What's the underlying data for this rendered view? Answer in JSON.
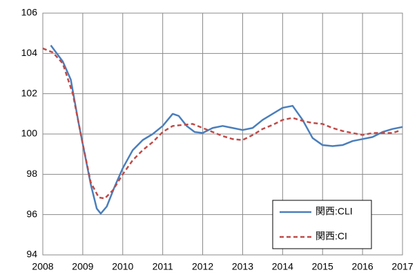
{
  "chart_data": {
    "type": "line",
    "xlim": [
      2008,
      2017
    ],
    "xticks": [
      2008,
      2009,
      2010,
      2011,
      2012,
      2013,
      2014,
      2015,
      2016,
      2017
    ],
    "ylim": [
      94,
      106
    ],
    "yticks": [
      94,
      96,
      98,
      100,
      102,
      104,
      106
    ],
    "grid": true,
    "legend": "lower-right",
    "series": [
      {
        "name": "関西:CLI",
        "color": "#4a7ebb",
        "dash": false,
        "x": [
          2008.2,
          2008.5,
          2008.7,
          2008.9,
          2009.0,
          2009.2,
          2009.35,
          2009.45,
          2009.6,
          2009.8,
          2010.0,
          2010.25,
          2010.5,
          2010.75,
          2011.0,
          2011.25,
          2011.4,
          2011.6,
          2011.8,
          2012.0,
          2012.25,
          2012.5,
          2012.75,
          2013.0,
          2013.25,
          2013.5,
          2013.75,
          2014.0,
          2014.25,
          2014.5,
          2014.75,
          2015.0,
          2015.25,
          2015.5,
          2015.75,
          2016.0,
          2016.25,
          2016.5,
          2016.75,
          2017.0
        ],
        "values": [
          104.4,
          103.6,
          102.7,
          100.5,
          99.5,
          97.5,
          96.3,
          96.05,
          96.4,
          97.4,
          98.3,
          99.2,
          99.7,
          100.0,
          100.4,
          101.0,
          100.9,
          100.4,
          100.1,
          100.05,
          100.3,
          100.4,
          100.3,
          100.2,
          100.3,
          100.7,
          101.0,
          101.3,
          101.4,
          100.7,
          99.8,
          99.45,
          99.4,
          99.45,
          99.65,
          99.75,
          99.85,
          100.1,
          100.25,
          100.35
        ]
      },
      {
        "name": "関西:CI",
        "color": "#be4b48",
        "dash": true,
        "x": [
          2008.0,
          2008.25,
          2008.5,
          2008.75,
          2009.0,
          2009.2,
          2009.4,
          2009.55,
          2009.75,
          2010.0,
          2010.25,
          2010.5,
          2010.75,
          2011.0,
          2011.25,
          2011.5,
          2011.75,
          2012.0,
          2012.25,
          2012.5,
          2012.75,
          2013.0,
          2013.25,
          2013.5,
          2013.75,
          2014.0,
          2014.25,
          2014.5,
          2014.75,
          2015.0,
          2015.25,
          2015.5,
          2015.75,
          2016.0,
          2016.25,
          2016.5,
          2016.75,
          2016.9
        ],
        "values": [
          104.25,
          104.05,
          103.5,
          102.0,
          99.5,
          97.6,
          96.85,
          96.8,
          97.2,
          98.0,
          98.7,
          99.2,
          99.6,
          100.1,
          100.4,
          100.45,
          100.5,
          100.3,
          100.1,
          99.9,
          99.75,
          99.7,
          99.95,
          100.25,
          100.45,
          100.7,
          100.8,
          100.65,
          100.55,
          100.5,
          100.3,
          100.15,
          100.05,
          99.95,
          100.05,
          100.05,
          100.05,
          100.15
        ]
      }
    ]
  }
}
